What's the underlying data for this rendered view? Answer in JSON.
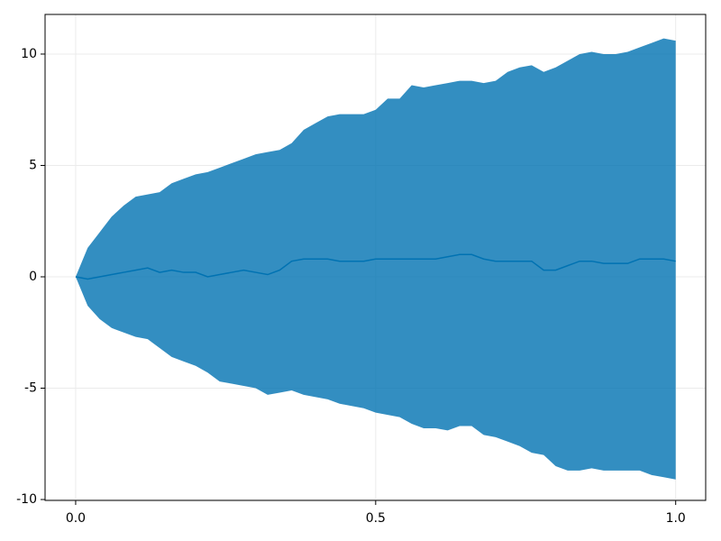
{
  "chart_data": {
    "type": "band",
    "x": [
      0,
      0.02,
      0.04,
      0.06,
      0.08,
      0.1,
      0.12,
      0.14,
      0.16,
      0.18,
      0.2,
      0.22,
      0.24,
      0.26,
      0.28,
      0.3,
      0.32,
      0.34,
      0.36,
      0.38,
      0.4,
      0.42,
      0.44,
      0.46,
      0.48,
      0.5,
      0.52,
      0.54,
      0.56,
      0.58,
      0.6,
      0.62,
      0.64,
      0.66,
      0.68,
      0.7,
      0.72,
      0.74,
      0.76,
      0.78,
      0.8,
      0.82,
      0.84,
      0.86,
      0.88,
      0.9,
      0.92,
      0.94,
      0.96,
      0.98,
      1.0
    ],
    "upper": [
      0,
      1.3,
      2.0,
      2.7,
      3.2,
      3.6,
      3.7,
      3.8,
      4.2,
      4.4,
      4.6,
      4.7,
      4.9,
      5.1,
      5.3,
      5.5,
      5.6,
      5.7,
      6.0,
      6.6,
      6.9,
      7.2,
      7.3,
      7.3,
      7.3,
      7.5,
      8.0,
      8.0,
      8.6,
      8.5,
      8.6,
      8.7,
      8.8,
      8.8,
      8.7,
      8.8,
      9.2,
      9.4,
      9.5,
      9.2,
      9.4,
      9.7,
      10.0,
      10.1,
      10.0,
      10.0,
      10.1,
      10.3,
      10.5,
      10.7,
      10.6
    ],
    "lower": [
      0,
      -1.3,
      -1.9,
      -2.3,
      -2.5,
      -2.7,
      -2.8,
      -3.2,
      -3.6,
      -3.8,
      -4.0,
      -4.3,
      -4.7,
      -4.8,
      -4.9,
      -5.0,
      -5.3,
      -5.2,
      -5.1,
      -5.3,
      -5.4,
      -5.5,
      -5.7,
      -5.8,
      -5.9,
      -6.1,
      -6.2,
      -6.3,
      -6.6,
      -6.8,
      -6.8,
      -6.9,
      -6.7,
      -6.7,
      -7.1,
      -7.2,
      -7.4,
      -7.6,
      -7.9,
      -8.0,
      -8.5,
      -8.7,
      -8.7,
      -8.6,
      -8.7,
      -8.7,
      -8.7,
      -8.7,
      -8.9,
      -9.0,
      -9.1
    ],
    "center": [
      0,
      -0.1,
      0.0,
      0.1,
      0.2,
      0.3,
      0.4,
      0.2,
      0.3,
      0.2,
      0.2,
      0.0,
      0.1,
      0.2,
      0.3,
      0.2,
      0.1,
      0.3,
      0.7,
      0.8,
      0.8,
      0.8,
      0.7,
      0.7,
      0.7,
      0.8,
      0.8,
      0.8,
      0.8,
      0.8,
      0.8,
      0.9,
      1.0,
      1.0,
      0.8,
      0.7,
      0.7,
      0.7,
      0.7,
      0.3,
      0.3,
      0.5,
      0.7,
      0.7,
      0.6,
      0.6,
      0.6,
      0.8,
      0.8,
      0.8,
      0.7
    ],
    "color": "#0072b2",
    "fill_alpha": 0.8,
    "xlim": [
      -0.051,
      1.05
    ],
    "ylim": [
      -10.04,
      11.78
    ],
    "xticks": [
      {
        "value": 0,
        "label": "0.0"
      },
      {
        "value": 0.5,
        "label": "0.5"
      },
      {
        "value": 1,
        "label": "1.0"
      }
    ],
    "yticks": [
      -10,
      -5,
      0,
      5,
      10
    ],
    "grid": true
  }
}
